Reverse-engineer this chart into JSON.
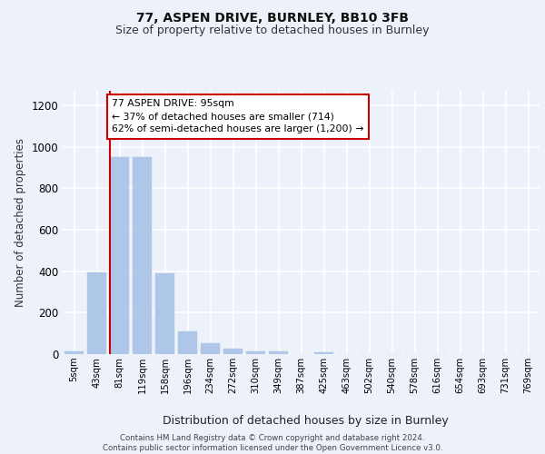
{
  "title1": "77, ASPEN DRIVE, BURNLEY, BB10 3FB",
  "title2": "Size of property relative to detached houses in Burnley",
  "xlabel": "Distribution of detached houses by size in Burnley",
  "ylabel": "Number of detached properties",
  "categories": [
    "5sqm",
    "43sqm",
    "81sqm",
    "119sqm",
    "158sqm",
    "196sqm",
    "234sqm",
    "272sqm",
    "310sqm",
    "349sqm",
    "387sqm",
    "425sqm",
    "463sqm",
    "502sqm",
    "540sqm",
    "578sqm",
    "616sqm",
    "654sqm",
    "693sqm",
    "731sqm",
    "769sqm"
  ],
  "values": [
    15,
    395,
    950,
    950,
    390,
    110,
    52,
    25,
    14,
    13,
    0,
    10,
    0,
    0,
    0,
    0,
    0,
    0,
    0,
    0,
    0
  ],
  "bar_color": "#aec6e8",
  "vline_bar_index": 2,
  "vline_color": "#cc0000",
  "annotation_text": "77 ASPEN DRIVE: 95sqm\n← 37% of detached houses are smaller (714)\n62% of semi-detached houses are larger (1,200) →",
  "annotation_box_color": "#ffffff",
  "annotation_box_edge": "#cc0000",
  "ylim": [
    0,
    1270
  ],
  "yticks": [
    0,
    200,
    400,
    600,
    800,
    1000,
    1200
  ],
  "footer": "Contains HM Land Registry data © Crown copyright and database right 2024.\nContains public sector information licensed under the Open Government Licence v3.0.",
  "bg_color": "#edf1f9",
  "grid_color": "#ffffff",
  "title1_fontsize": 10,
  "title2_fontsize": 9
}
